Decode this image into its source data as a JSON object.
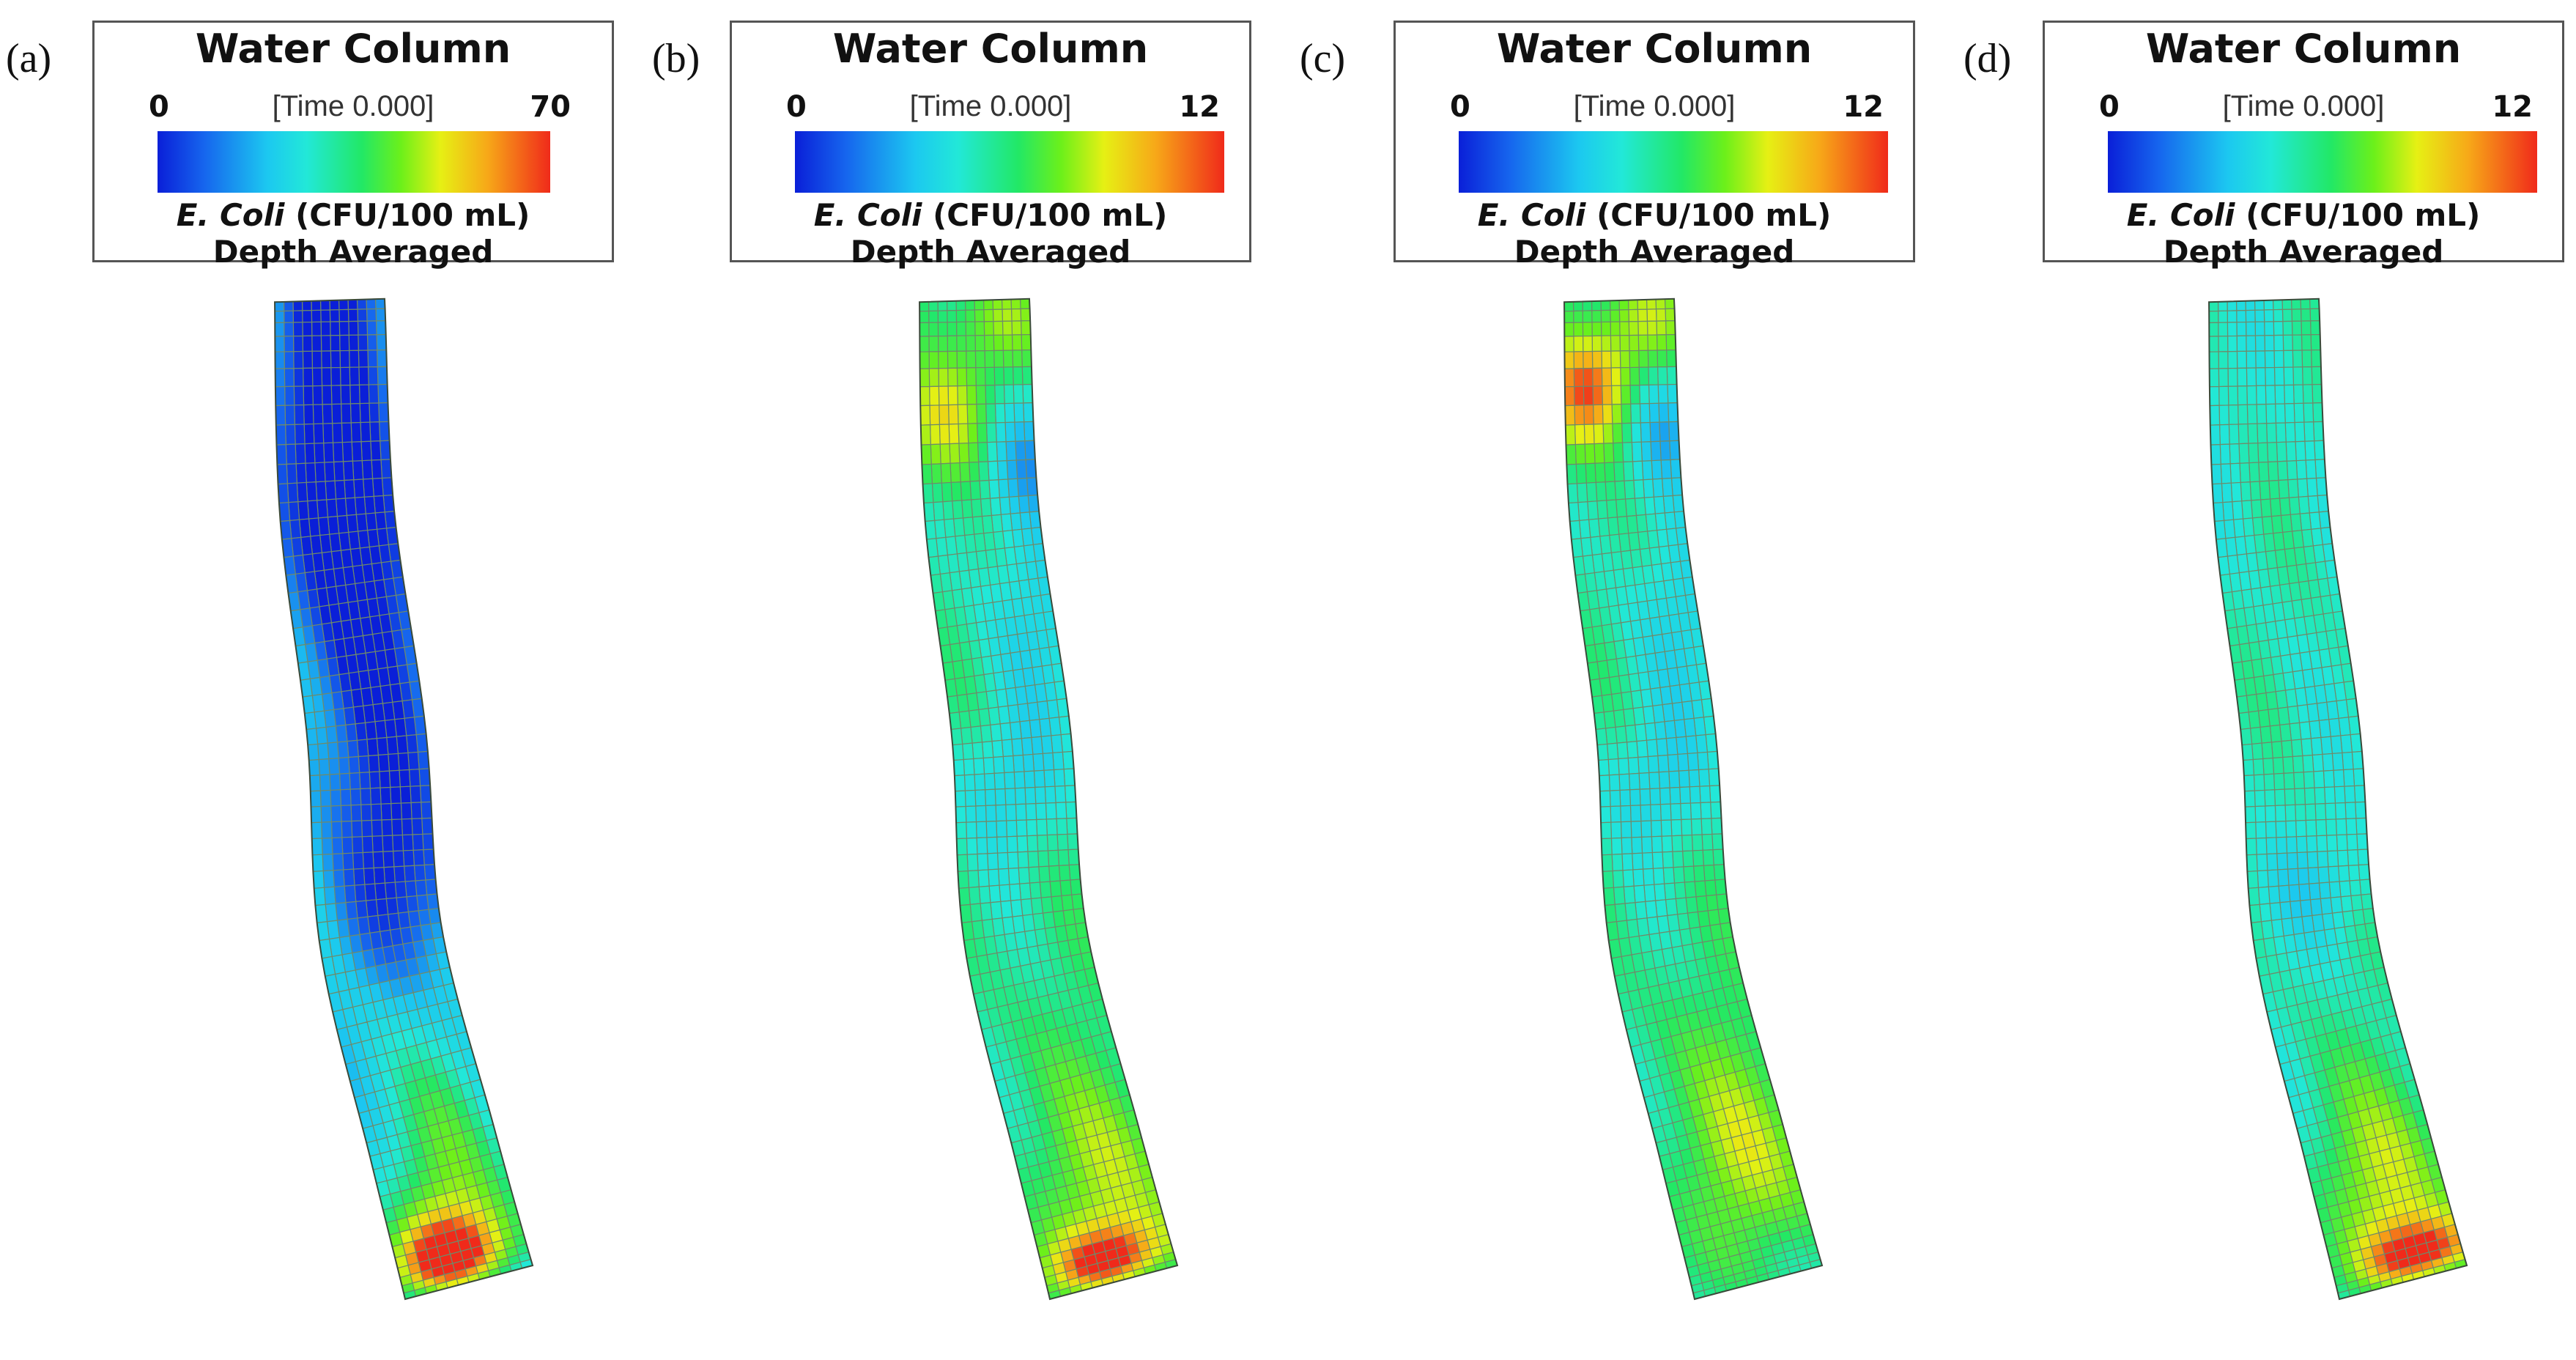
{
  "legend": {
    "title": "Water Column",
    "time_label": "[Time 0.000]",
    "species": "E. Coli",
    "units": "(CFU/100 mL)",
    "averaging": "Depth Averaged",
    "colormap": [
      "#0a1fd8",
      "#1666ee",
      "#1cc8f0",
      "#22e8d8",
      "#22e866",
      "#6cf01a",
      "#e6f014",
      "#f7a818",
      "#f02a1a"
    ]
  },
  "panels": [
    {
      "letter": "(a)",
      "min": "0",
      "max": "70",
      "hotspots": [
        {
          "t": 0.05,
          "s": 0.5,
          "v": 0.02,
          "r": 0.35
        },
        {
          "t": 0.25,
          "s": 0.4,
          "v": 0.05,
          "r": 0.3
        },
        {
          "t": 0.55,
          "s": 0.2,
          "v": 0.1,
          "r": 0.1
        },
        {
          "t": 0.85,
          "s": 0.4,
          "v": 0.6,
          "r": 0.15
        },
        {
          "t": 0.94,
          "s": 0.6,
          "v": 1.0,
          "r": 0.06
        }
      ],
      "base": 0.28
    },
    {
      "letter": "(b)",
      "min": "0",
      "max": "12",
      "hotspots": [
        {
          "t": 0.03,
          "s": 0.3,
          "v": 0.65,
          "r": 0.05
        },
        {
          "t": 0.12,
          "s": 0.8,
          "v": 0.8,
          "r": 0.05
        },
        {
          "t": 0.15,
          "s": 0.1,
          "v": 0.2,
          "r": 0.06
        },
        {
          "t": 0.3,
          "s": 0.2,
          "v": 0.3,
          "r": 0.1
        },
        {
          "t": 0.45,
          "s": 0.6,
          "v": 0.3,
          "r": 0.07
        },
        {
          "t": 0.85,
          "s": 0.3,
          "v": 0.7,
          "r": 0.12
        },
        {
          "t": 0.95,
          "s": 0.5,
          "v": 1.0,
          "r": 0.05
        }
      ],
      "base": 0.45
    },
    {
      "letter": "(c)",
      "min": "0",
      "max": "12",
      "hotspots": [
        {
          "t": 0.03,
          "s": 0.3,
          "v": 0.7,
          "r": 0.06
        },
        {
          "t": 0.1,
          "s": 0.8,
          "v": 1.0,
          "r": 0.05
        },
        {
          "t": 0.12,
          "s": 0.2,
          "v": 0.15,
          "r": 0.06
        },
        {
          "t": 0.3,
          "s": 0.2,
          "v": 0.3,
          "r": 0.1
        },
        {
          "t": 0.45,
          "s": 0.6,
          "v": 0.3,
          "r": 0.07
        },
        {
          "t": 0.82,
          "s": 0.3,
          "v": 0.72,
          "r": 0.12
        }
      ],
      "base": 0.45
    },
    {
      "letter": "(d)",
      "min": "0",
      "max": "12",
      "hotspots": [
        {
          "t": 0.1,
          "s": 0.6,
          "v": 0.38,
          "r": 0.08
        },
        {
          "t": 0.55,
          "s": 0.4,
          "v": 0.3,
          "r": 0.05
        },
        {
          "t": 0.85,
          "s": 0.4,
          "v": 0.72,
          "r": 0.12
        },
        {
          "t": 0.95,
          "s": 0.3,
          "v": 1.0,
          "r": 0.05
        }
      ],
      "base": 0.4
    }
  ]
}
